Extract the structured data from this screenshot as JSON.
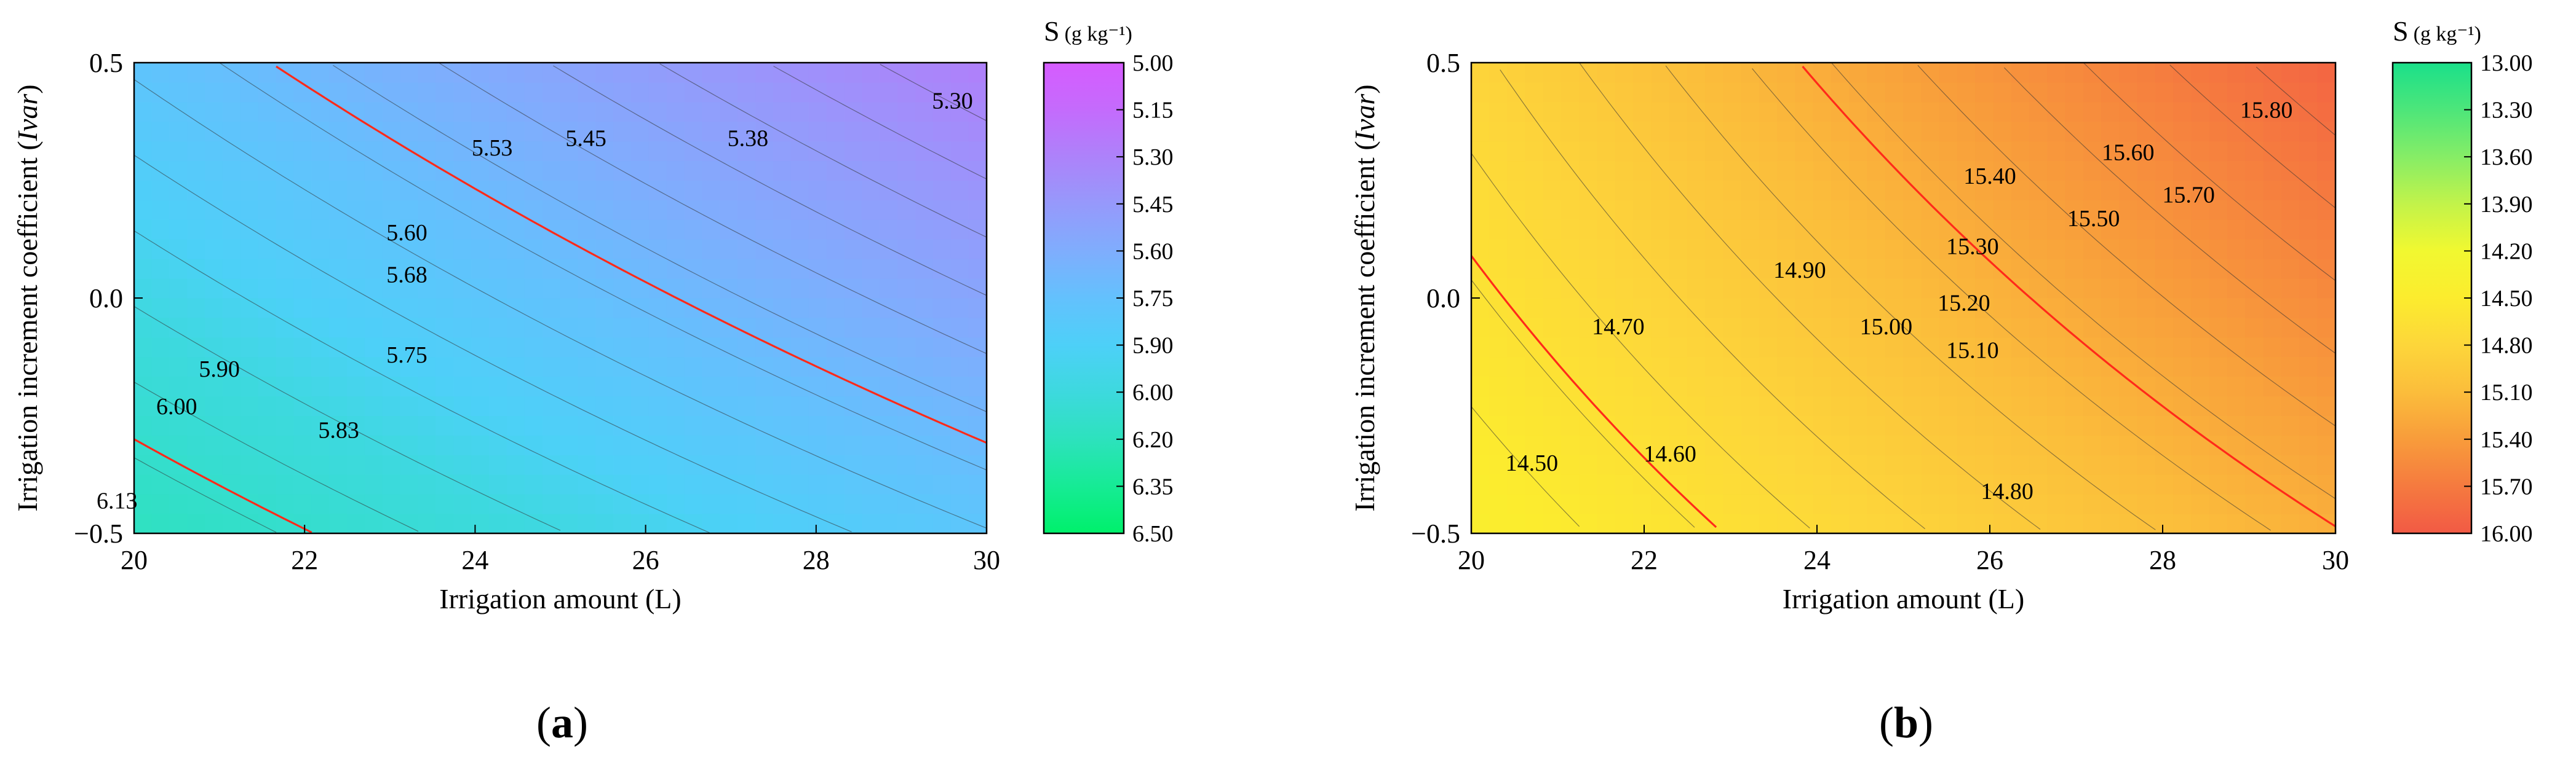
{
  "chart_data": [
    {
      "type": "contour",
      "id": "a",
      "xlabel": "Irrigation amount (L)",
      "ylabel": "Irrigation increment coefficient (Ivar)",
      "ylabel_main": "Irrigation increment coefficient (",
      "ylabel_italic": "Ivar",
      "ylabel_close": ")",
      "xlim": [
        20,
        30
      ],
      "ylim": [
        -0.5,
        0.5
      ],
      "x_ticks": [
        20,
        22,
        24,
        26,
        28,
        30
      ],
      "x_tick_labels": [
        "20",
        "22",
        "24",
        "26",
        "28",
        "30"
      ],
      "y_ticks": [
        -0.5,
        0.0,
        0.5
      ],
      "y_tick_labels": [
        "−0.5",
        "0.0",
        "0.5"
      ],
      "z_at_corners": {
        "x20_y-0.5": 6.18,
        "x30_y-0.5": 5.8,
        "x20_y0.5": 5.78,
        "x30_y0.5": 5.28
      },
      "colorbar": {
        "title": "S",
        "unit": "(g kg⁻¹)",
        "levels": [
          5.0,
          5.15,
          5.3,
          5.45,
          5.6,
          5.75,
          5.9,
          6.0,
          6.2,
          6.35,
          6.5
        ],
        "labels": [
          "5.00",
          "5.15",
          "5.30",
          "5.45",
          "5.60",
          "5.75",
          "5.90",
          "6.00",
          "6.20",
          "6.35",
          "6.50"
        ],
        "colors": [
          "#d65cff",
          "#c46bfc",
          "#ad82fa",
          "#9699fb",
          "#7fadfd",
          "#63c1fd",
          "#4dd0f8",
          "#3dd9de",
          "#2de2bd",
          "#16eb95",
          "#00f06b"
        ]
      },
      "contour_labels": [
        {
          "text": "5.30",
          "x": 29.6,
          "y": 0.42
        },
        {
          "text": "5.38",
          "x": 27.2,
          "y": 0.34
        },
        {
          "text": "5.45",
          "x": 25.3,
          "y": 0.34
        },
        {
          "text": "5.53",
          "x": 24.2,
          "y": 0.32
        },
        {
          "text": "5.60",
          "x": 23.2,
          "y": 0.14
        },
        {
          "text": "5.68",
          "x": 23.2,
          "y": 0.05
        },
        {
          "text": "5.75",
          "x": 23.2,
          "y": -0.12
        },
        {
          "text": "5.83",
          "x": 22.4,
          "y": -0.28
        },
        {
          "text": "5.90",
          "x": 21.0,
          "y": -0.15
        },
        {
          "text": "6.00",
          "x": 20.5,
          "y": -0.23
        },
        {
          "text": "6.13",
          "x": 19.8,
          "y": -0.43
        }
      ],
      "highlight_contour_levels": [
        5.7,
        6.1
      ],
      "subplot_label": "a"
    },
    {
      "type": "contour",
      "id": "b",
      "xlabel": "Irrigation amount (L)",
      "ylabel": "Irrigation increment coefficient (Ivar)",
      "ylabel_main": "Irrigation increment coefficient (",
      "ylabel_italic": "Ivar",
      "ylabel_close": ")",
      "xlim": [
        20,
        30
      ],
      "ylim": [
        -0.5,
        0.5
      ],
      "x_ticks": [
        20,
        22,
        24,
        26,
        28,
        30
      ],
      "x_tick_labels": [
        "20",
        "22",
        "24",
        "26",
        "28",
        "30"
      ],
      "y_ticks": [
        -0.5,
        0.0,
        0.5
      ],
      "y_tick_labels": [
        "−0.5",
        "0.0",
        "0.5"
      ],
      "z_at_corners": {
        "x20_y-0.5": 14.43,
        "x30_y-0.5": 15.22,
        "x20_y0.5": 14.82,
        "x30_y0.5": 15.9
      },
      "colorbar": {
        "title": "S",
        "unit": "(g kg⁻¹)",
        "levels": [
          13.0,
          13.3,
          13.6,
          13.9,
          14.2,
          14.5,
          14.8,
          15.1,
          15.4,
          15.7,
          16.0
        ],
        "labels": [
          "13.00",
          "13.30",
          "13.60",
          "13.90",
          "14.20",
          "14.50",
          "14.80",
          "15.10",
          "15.40",
          "15.70",
          "16.00"
        ],
        "colors": [
          "#1ae08a",
          "#4de67a",
          "#86ed66",
          "#c2f34a",
          "#f1f830",
          "#fcec2e",
          "#fdd63a",
          "#fbbd3b",
          "#f89c3b",
          "#f57a3f",
          "#f25a45"
        ]
      },
      "contour_labels": [
        {
          "text": "15.80",
          "x": 29.2,
          "y": 0.4
        },
        {
          "text": "15.60",
          "x": 27.6,
          "y": 0.31
        },
        {
          "text": "15.70",
          "x": 28.3,
          "y": 0.22
        },
        {
          "text": "15.40",
          "x": 26.0,
          "y": 0.26
        },
        {
          "text": "15.50",
          "x": 27.2,
          "y": 0.17
        },
        {
          "text": "15.30",
          "x": 25.8,
          "y": 0.11
        },
        {
          "text": "15.20",
          "x": 25.7,
          "y": -0.01
        },
        {
          "text": "15.10",
          "x": 25.8,
          "y": -0.11
        },
        {
          "text": "15.00",
          "x": 24.8,
          "y": -0.06
        },
        {
          "text": "14.90",
          "x": 23.8,
          "y": 0.06
        },
        {
          "text": "14.70",
          "x": 21.7,
          "y": -0.06
        },
        {
          "text": "14.80",
          "x": 26.2,
          "y": -0.41
        },
        {
          "text": "14.60",
          "x": 22.3,
          "y": -0.33
        },
        {
          "text": "14.50",
          "x": 20.7,
          "y": -0.35
        }
      ],
      "highlight_contour_levels": [
        14.66,
        15.23
      ],
      "subplot_label": "b"
    }
  ]
}
